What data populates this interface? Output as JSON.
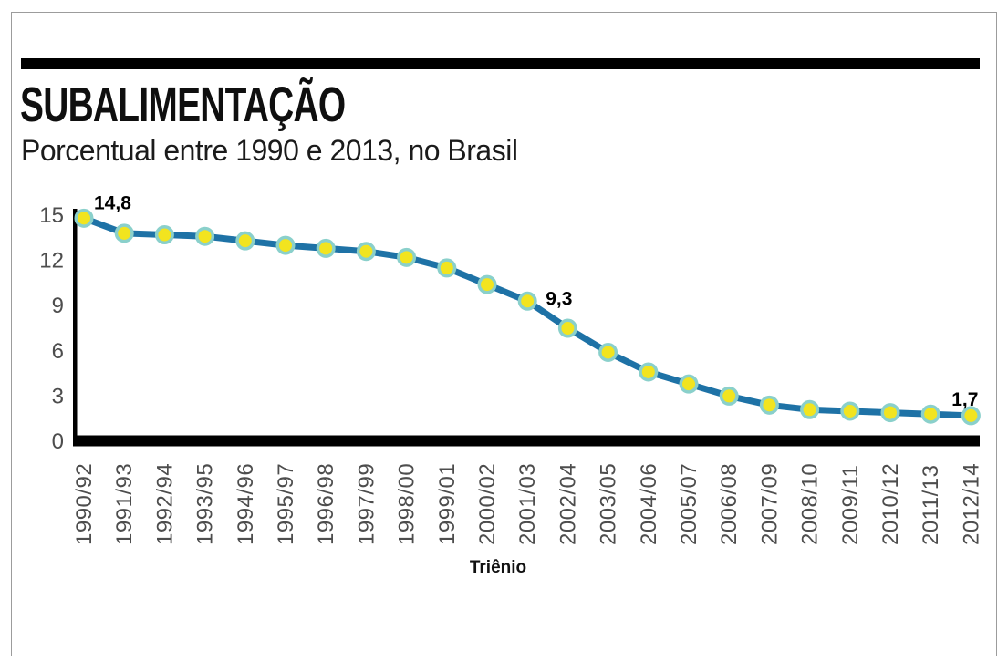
{
  "header": {
    "title": "SUBALIMENTAÇÃO",
    "subtitle": "Porcentual entre 1990 e 2013, no Brasil"
  },
  "chart_data": {
    "type": "line",
    "title": "SUBALIMENTAÇÃO",
    "subtitle": "Porcentual entre 1990 e 2013, no Brasil",
    "xlabel": "Triênio",
    "ylabel": "",
    "categories": [
      "1990/92",
      "1991/93",
      "1992/94",
      "1993/95",
      "1994/96",
      "1995/97",
      "1996/98",
      "1997/99",
      "1998/00",
      "1999/01",
      "2000/02",
      "2001/03",
      "2002/04",
      "2003/05",
      "2004/06",
      "2005/07",
      "2006/08",
      "2007/09",
      "2008/10",
      "2009/11",
      "2010/12",
      "2011/13",
      "2012/14"
    ],
    "values": [
      14.8,
      13.8,
      13.7,
      13.6,
      13.3,
      13.0,
      12.8,
      12.6,
      12.2,
      11.5,
      10.4,
      9.3,
      7.5,
      5.9,
      4.6,
      3.8,
      3.0,
      2.4,
      2.1,
      2.0,
      1.9,
      1.8,
      1.7
    ],
    "y_ticks": [
      0,
      3,
      6,
      9,
      12,
      15
    ],
    "ylim": [
      0,
      15
    ],
    "grid": false,
    "legend": null,
    "point_labels": [
      {
        "index": 0,
        "text": "14,8"
      },
      {
        "index": 11,
        "text": "9,3"
      },
      {
        "index": 22,
        "text": "1,7"
      }
    ],
    "colors": {
      "line": "#1e72a6",
      "marker_fill": "#f2e41f",
      "marker_ring": "#8ad0cb",
      "axis": "#000000",
      "tick_text": "#4d4d4d",
      "accent_bar": "#000000"
    }
  }
}
